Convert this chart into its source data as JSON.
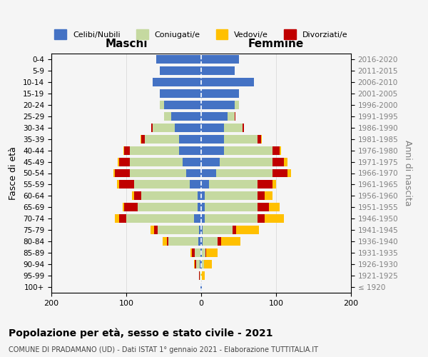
{
  "age_groups": [
    "100+",
    "95-99",
    "90-94",
    "85-89",
    "80-84",
    "75-79",
    "70-74",
    "65-69",
    "60-64",
    "55-59",
    "50-54",
    "45-49",
    "40-44",
    "35-39",
    "30-34",
    "25-29",
    "20-24",
    "15-19",
    "10-14",
    "5-9",
    "0-4"
  ],
  "birth_years": [
    "≤ 1920",
    "1921-1925",
    "1926-1930",
    "1931-1935",
    "1936-1940",
    "1941-1945",
    "1946-1950",
    "1951-1955",
    "1956-1960",
    "1961-1965",
    "1966-1970",
    "1971-1975",
    "1976-1980",
    "1981-1985",
    "1986-1990",
    "1991-1995",
    "1996-2000",
    "2001-2005",
    "2006-2010",
    "2011-2015",
    "2016-2020"
  ],
  "maschi": {
    "celibi": [
      1,
      0,
      2,
      1,
      4,
      3,
      10,
      5,
      5,
      15,
      20,
      25,
      30,
      30,
      35,
      40,
      50,
      55,
      65,
      55,
      60
    ],
    "coniugati": [
      0,
      2,
      5,
      8,
      40,
      55,
      90,
      80,
      75,
      75,
      75,
      70,
      65,
      45,
      30,
      10,
      5,
      0,
      0,
      0,
      0
    ],
    "vedovi": [
      0,
      0,
      1,
      2,
      5,
      5,
      5,
      2,
      2,
      2,
      2,
      1,
      1,
      1,
      0,
      0,
      0,
      0,
      0,
      0,
      0
    ],
    "divorziati": [
      0,
      1,
      2,
      3,
      2,
      5,
      10,
      18,
      10,
      20,
      20,
      15,
      8,
      5,
      2,
      0,
      0,
      0,
      0,
      0,
      0
    ]
  },
  "femmine": {
    "nubili": [
      1,
      0,
      1,
      1,
      2,
      2,
      5,
      5,
      5,
      10,
      20,
      25,
      30,
      30,
      30,
      35,
      45,
      50,
      70,
      45,
      50
    ],
    "coniugate": [
      0,
      0,
      3,
      5,
      20,
      40,
      70,
      70,
      70,
      65,
      75,
      70,
      65,
      45,
      25,
      10,
      5,
      0,
      0,
      0,
      0
    ],
    "vedove": [
      0,
      5,
      10,
      15,
      25,
      30,
      25,
      15,
      10,
      5,
      5,
      5,
      2,
      1,
      0,
      0,
      0,
      0,
      0,
      0,
      0
    ],
    "divorziate": [
      0,
      0,
      0,
      1,
      5,
      5,
      10,
      15,
      10,
      20,
      20,
      15,
      10,
      5,
      2,
      1,
      0,
      0,
      0,
      0,
      0
    ]
  },
  "colors": {
    "celibi": "#4472c4",
    "coniugati": "#c5d9a0",
    "vedovi": "#ffc000",
    "divorziati": "#c00000"
  },
  "xlim": 200,
  "title": "Popolazione per età, sesso e stato civile - 2021",
  "subtitle": "COMUNE DI PRADAMANO (UD) - Dati ISTAT 1° gennaio 2021 - Elaborazione TUTTITALIA.IT",
  "ylabel_left": "Fasce di età",
  "ylabel_right": "Anni di nascita",
  "xlabel_left": "Maschi",
  "xlabel_right": "Femmine",
  "bg_color": "#f5f5f5",
  "grid_color": "#cccccc"
}
